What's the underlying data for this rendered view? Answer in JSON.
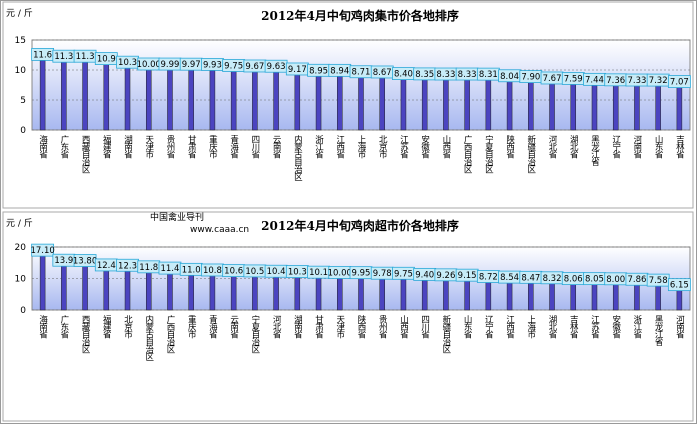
{
  "chart_data": [
    {
      "type": "bar",
      "title": "2012年4月中旬鸡肉集市价各地排序",
      "unit_label": "元 / 斤",
      "categories": [
        "海南省",
        "广东省",
        "西藏自治区",
        "福建省",
        "湖南省",
        "天津市",
        "贵州省",
        "甘肃省",
        "重庆市",
        "青海省",
        "四川省",
        "云南省",
        "内蒙古自治区",
        "浙江省",
        "江西省",
        "上海市",
        "北京市",
        "江苏省",
        "安徽省",
        "山西省",
        "广西自治区",
        "宁夏自治区",
        "陕西省",
        "新疆自治区",
        "河北省",
        "湖北省",
        "黑龙江省",
        "辽宁省",
        "河南省",
        "山东省",
        "吉林省"
      ],
      "values": [
        11.6,
        11.3,
        11.3,
        10.9,
        10.3,
        10.0,
        9.99,
        9.97,
        9.93,
        9.75,
        9.67,
        9.63,
        9.17,
        8.95,
        8.94,
        8.71,
        8.67,
        8.4,
        8.35,
        8.33,
        8.33,
        8.31,
        8.04,
        7.9,
        7.67,
        7.59,
        7.44,
        7.36,
        7.33,
        7.32,
        7.07
      ],
      "value_labels": [
        "11.6",
        "11.3",
        "11.3",
        "10.9",
        "10.3",
        "10.00",
        "9.99",
        "9.97",
        "9.93",
        "9.75",
        "9.67",
        "9.63",
        "9.17",
        "8.95",
        "8.94",
        "8.71",
        "8.67",
        "8.40",
        "8.35",
        "8.33",
        "8.33",
        "8.31",
        "8.04",
        "7.90",
        "7.67",
        "7.59",
        "7.44",
        "7.36",
        "7.33",
        "7.32",
        "7.07"
      ],
      "color": "#4b44c0",
      "ylim": [
        0,
        15
      ],
      "yticks": [
        0,
        5,
        10,
        15
      ],
      "grid": true
    },
    {
      "type": "bar",
      "title": "2012年4月中旬鸡肉超市价各地排序",
      "unit_label": "元 / 斤",
      "watermark": [
        "中国禽业导刊",
        "www.caaa.cn"
      ],
      "categories": [
        "海南省",
        "广东省",
        "西藏自治区",
        "福建省",
        "北京市",
        "内蒙古自治区",
        "广西自治区",
        "重庆市",
        "青海省",
        "云南省",
        "宁夏自治区",
        "河北省",
        "湖南省",
        "甘肃省",
        "天津市",
        "陕西省",
        "贵州省",
        "山西省",
        "四川省",
        "新疆自治区",
        "山东省",
        "辽宁省",
        "江西省",
        "上海市",
        "湖北省",
        "吉林省",
        "江苏省",
        "安徽省",
        "浙江省",
        "黑龙江省",
        "河南省"
      ],
      "values": [
        17.1,
        13.9,
        13.8,
        12.4,
        12.3,
        11.8,
        11.4,
        11.0,
        10.8,
        10.6,
        10.5,
        10.4,
        10.3,
        10.1,
        10.0,
        9.95,
        9.78,
        9.75,
        9.4,
        9.26,
        9.15,
        8.72,
        8.54,
        8.47,
        8.32,
        8.06,
        8.05,
        8.0,
        7.86,
        7.58,
        6.15
      ],
      "value_labels": [
        "17.10",
        "13.9",
        "13.80",
        "12.4",
        "12.3",
        "11.8",
        "11.4",
        "11.0",
        "10.8",
        "10.6",
        "10.5",
        "10.4",
        "10.3",
        "10.1",
        "10.00",
        "9.95",
        "9.78",
        "9.75",
        "9.40",
        "9.26",
        "9.15",
        "8.72",
        "8.54",
        "8.47",
        "8.32",
        "8.06",
        "8.05",
        "8.00",
        "7.86",
        "7.58",
        "6.15"
      ],
      "color": "#4b44c0",
      "ylim": [
        0,
        20
      ],
      "yticks": [
        0,
        10,
        20
      ],
      "grid": true
    }
  ]
}
